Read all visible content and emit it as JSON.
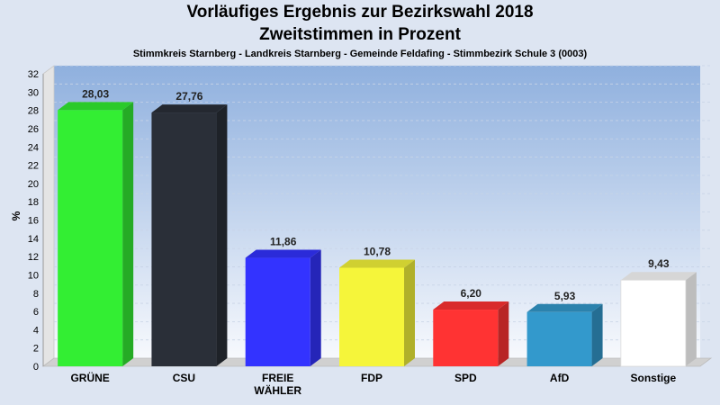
{
  "chart_data": {
    "type": "bar",
    "title": "Vorläufiges Ergebnis zur Bezirkswahl 2018",
    "title2": "Zweitstimmen in Prozent",
    "subtitle": "Stimmkreis Starnberg - Landkreis Starnberg - Gemeinde Feldafing - Stimmbezirk Schule 3 (0003)",
    "ylabel": "%",
    "ylim": [
      0,
      32
    ],
    "ytick_step": 2,
    "grid": true,
    "categories": [
      "GRÜNE",
      "CSU",
      "FREIE WÄHLER",
      "FDP",
      "SPD",
      "AfD",
      "Sonstige"
    ],
    "category_lines": [
      [
        "GRÜNE"
      ],
      [
        "CSU"
      ],
      [
        "FREIE",
        "WÄHLER"
      ],
      [
        "FDP"
      ],
      [
        "SPD"
      ],
      [
        "AfD"
      ],
      [
        "Sonstige"
      ]
    ],
    "values": [
      28.03,
      27.76,
      11.86,
      10.78,
      6.2,
      5.93,
      9.43
    ],
    "value_labels": [
      "28,03",
      "27,76",
      "11,86",
      "10,78",
      "6,20",
      "5,93",
      "9,43"
    ],
    "colors": [
      "#33ee33",
      "#2a2f38",
      "#3333ff",
      "#f5f53a",
      "#ff3333",
      "#3399cc",
      "#ffffff"
    ]
  }
}
